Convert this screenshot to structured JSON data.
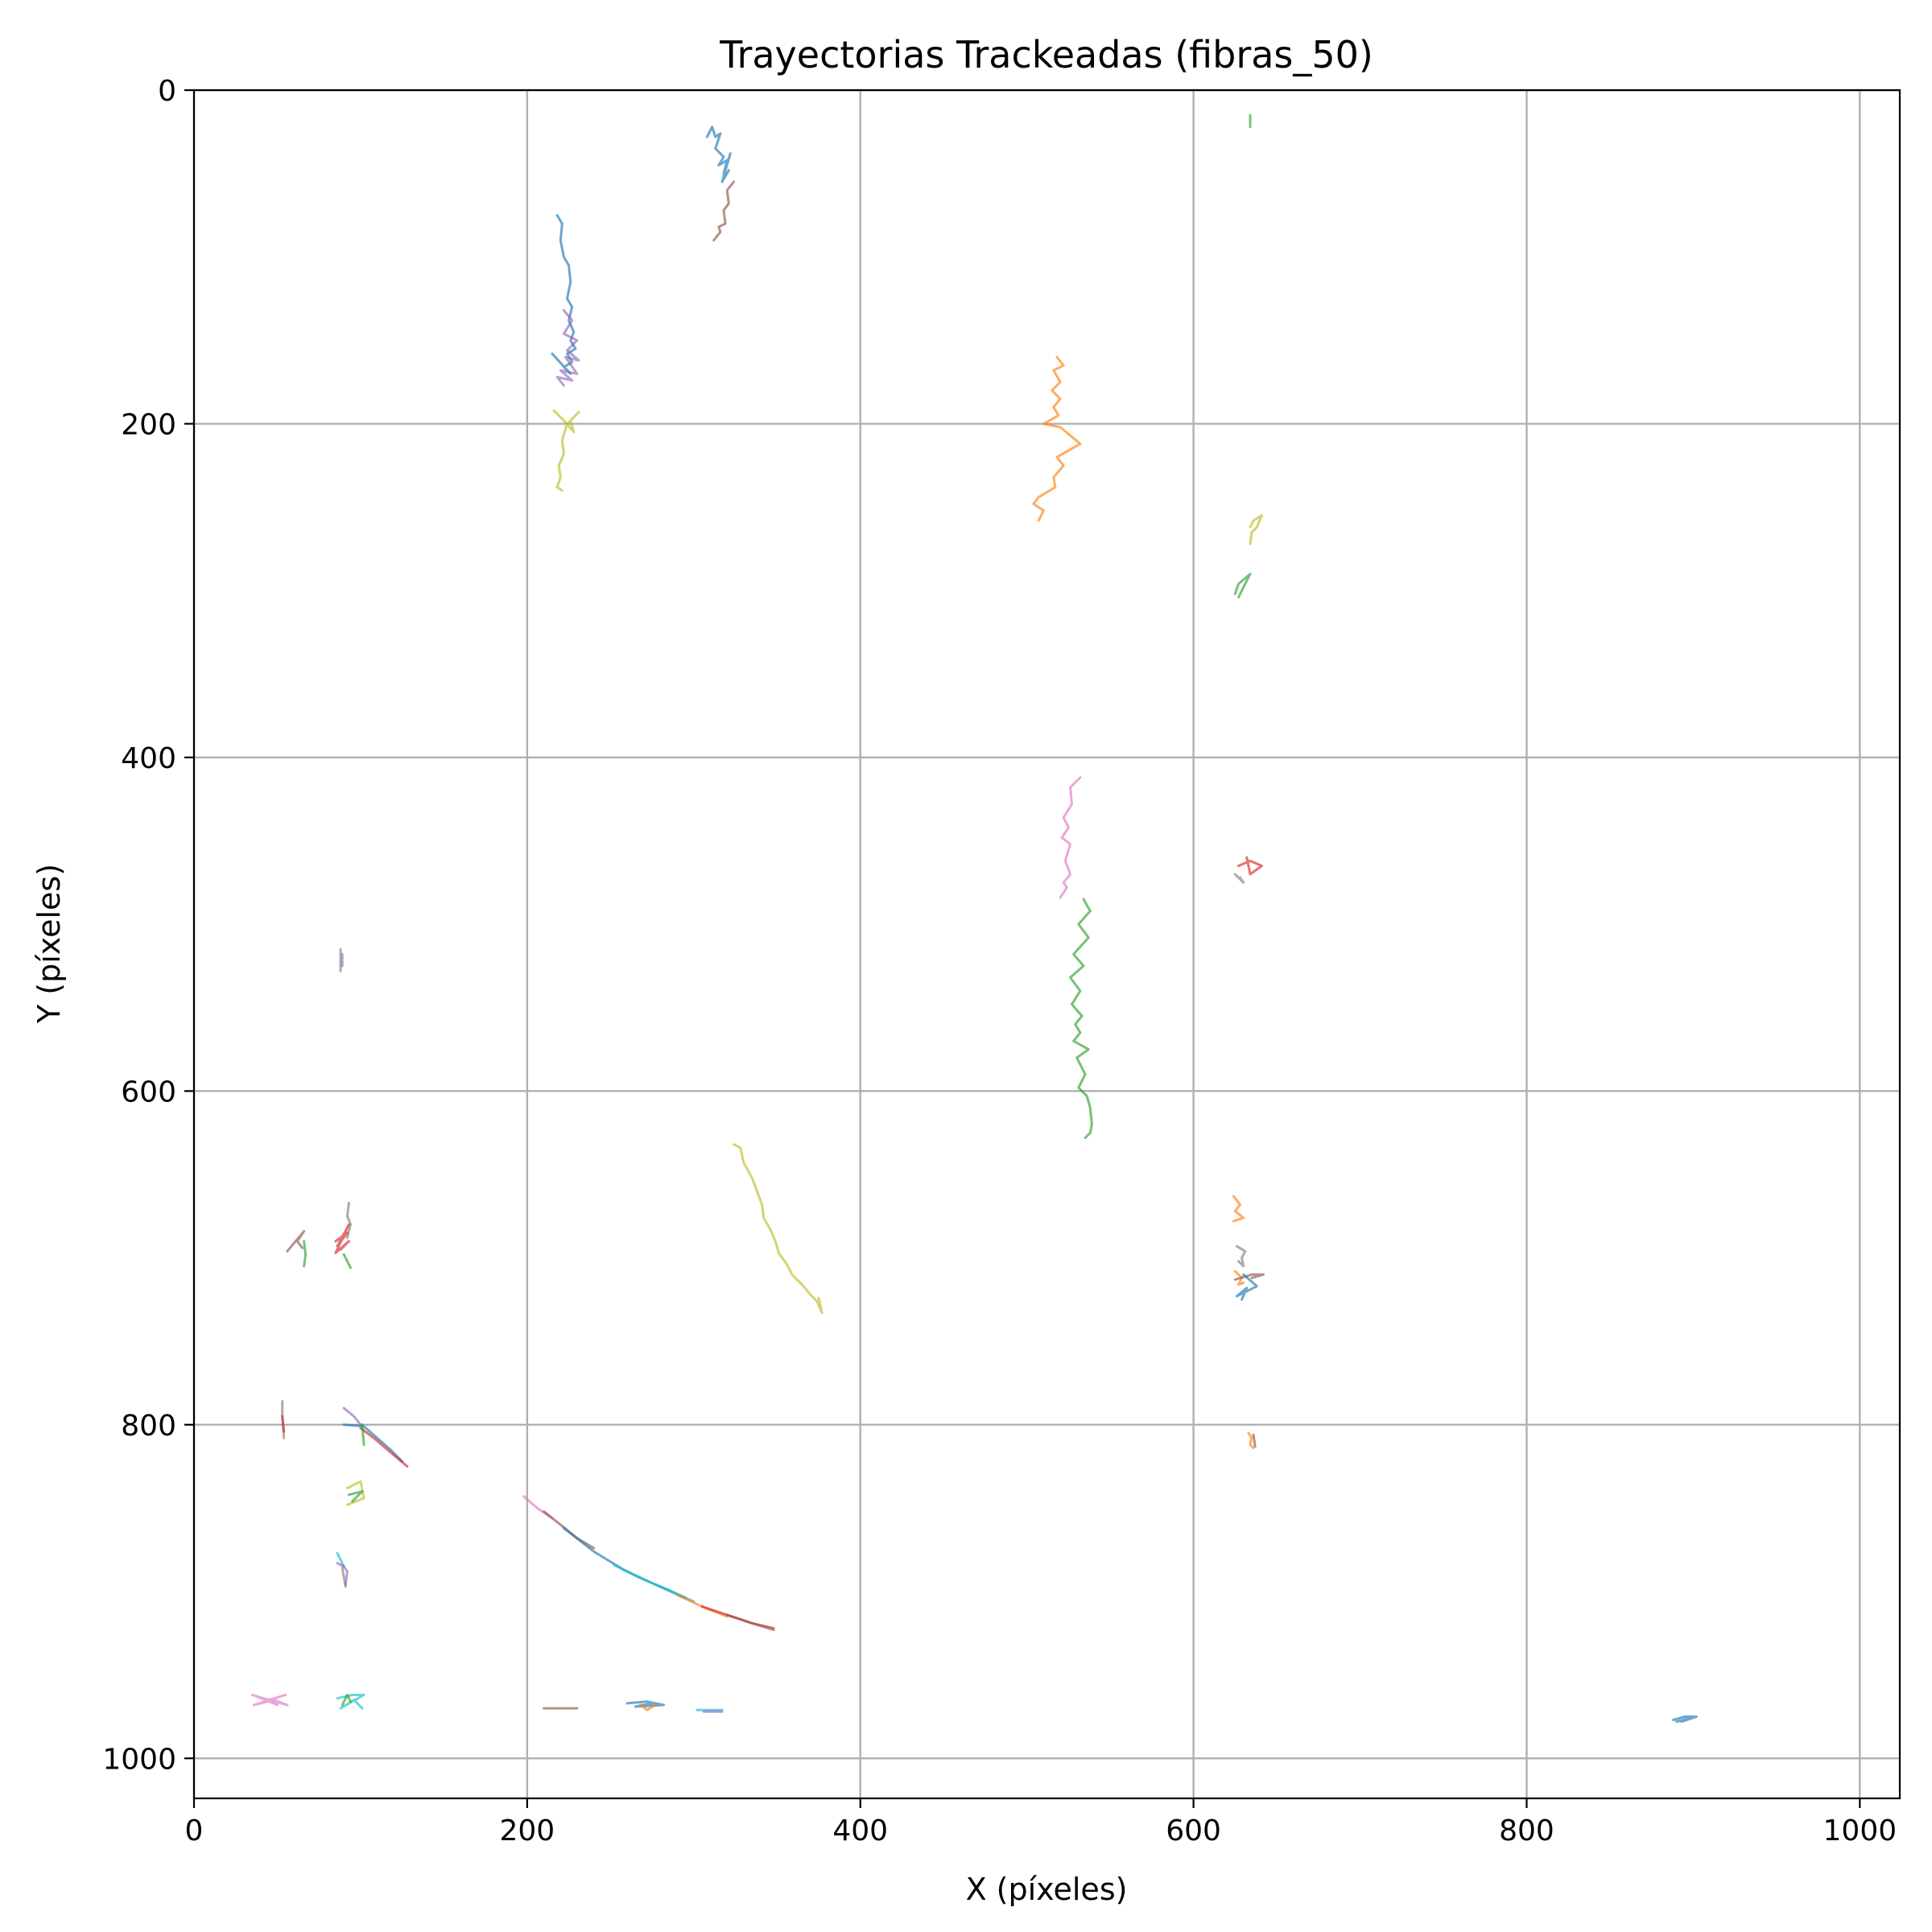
{
  "chart_data": {
    "type": "line",
    "title": "Trayectorias Trackeadas (fibras_50)",
    "xlabel": "X (píxeles)",
    "ylabel": "Y (píxeles)",
    "xlim": [
      0,
      1024
    ],
    "ylim": [
      1024,
      0
    ],
    "y_inverted": true,
    "grid": true,
    "legend": "none",
    "x_ticks": [
      0,
      200,
      400,
      600,
      800,
      1000
    ],
    "y_ticks": [
      0,
      200,
      400,
      600,
      800,
      1000
    ],
    "series": [
      {
        "color": "#1f77b4",
        "x": [
          218,
          221,
          220,
          222,
          225,
          226,
          224,
          227,
          225,
          228,
          226,
          229,
          224,
          227,
          222,
          226,
          215
        ],
        "y": [
          75,
          80,
          90,
          100,
          105,
          115,
          125,
          130,
          138,
          145,
          150,
          155,
          158,
          163,
          166,
          170,
          158
        ]
      },
      {
        "color": "#9467bd",
        "x": [
          222,
          227,
          222,
          230,
          224,
          231,
          223,
          230,
          220,
          227,
          218,
          222
        ],
        "y": [
          132,
          138,
          146,
          150,
          156,
          162,
          160,
          170,
          168,
          174,
          172,
          177
        ]
      },
      {
        "color": "#bcbd22",
        "x": [
          216,
          222,
          228,
          226,
          231,
          224,
          221,
          222,
          219,
          220,
          218,
          221
        ],
        "y": [
          192,
          198,
          205,
          198,
          193,
          200,
          210,
          218,
          225,
          232,
          238,
          240
        ]
      },
      {
        "color": "#1f77b4",
        "x": [
          308,
          311,
          313,
          316,
          313,
          318,
          315,
          320,
          318,
          322,
          317,
          321
        ],
        "y": [
          28,
          22,
          28,
          26,
          35,
          40,
          45,
          42,
          50,
          38,
          55,
          48
        ]
      },
      {
        "color": "#8c564b",
        "x": [
          324,
          320,
          321,
          318,
          319,
          315,
          316,
          312
        ],
        "y": [
          55,
          60,
          68,
          72,
          80,
          82,
          85,
          90
        ]
      },
      {
        "color": "#2ca02c",
        "x": [
          634,
          634
        ],
        "y": [
          15,
          22
        ]
      },
      {
        "color": "#ff7f0e",
        "x": [
          518,
          522,
          516,
          520,
          515,
          520,
          516,
          519,
          510,
          520,
          532,
          518,
          522,
          516,
          517,
          507,
          504,
          510,
          507
        ],
        "y": [
          160,
          165,
          168,
          175,
          180,
          185,
          190,
          195,
          200,
          202,
          212,
          220,
          225,
          232,
          238,
          244,
          248,
          252,
          258
        ]
      },
      {
        "color": "#bcbd22",
        "x": [
          634,
          636,
          641,
          638,
          635,
          634
        ],
        "y": [
          262,
          258,
          255,
          262,
          265,
          272
        ]
      },
      {
        "color": "#2ca02c",
        "x": [
          627,
          631,
          629,
          634,
          627,
          625
        ],
        "y": [
          304,
          296,
          300,
          290,
          296,
          302
        ]
      },
      {
        "color": "#e377c2",
        "x": [
          532,
          526,
          527,
          522,
          525,
          521,
          526,
          523,
          526,
          522,
          524,
          520
        ],
        "y": [
          412,
          418,
          428,
          436,
          442,
          448,
          452,
          462,
          470,
          475,
          478,
          484
        ]
      },
      {
        "color": "#d62728",
        "x": [
          627,
          634,
          641,
          634,
          632
        ],
        "y": [
          465,
          462,
          465,
          470,
          460
        ]
      },
      {
        "color": "#7f7f7f",
        "x": [
          625,
          630,
          628
        ],
        "y": [
          470,
          475,
          472
        ]
      },
      {
        "color": "#2ca02c",
        "x": [
          534,
          538,
          531,
          537,
          528,
          534,
          526,
          532,
          527,
          533,
          529,
          532,
          528,
          537,
          530,
          535,
          531,
          536,
          538,
          539,
          538,
          535
        ],
        "y": [
          485,
          492,
          500,
          508,
          518,
          525,
          532,
          540,
          548,
          555,
          560,
          565,
          570,
          575,
          580,
          590,
          598,
          603,
          610,
          620,
          625,
          628
        ]
      },
      {
        "color": "#bcbd22",
        "x": [
          324,
          328,
          330,
          335,
          338,
          341,
          342,
          346,
          349,
          351,
          356,
          359,
          365,
          370,
          374,
          377,
          375
        ],
        "y": [
          632,
          634,
          643,
          652,
          660,
          668,
          676,
          683,
          690,
          697,
          704,
          710,
          716,
          722,
          726,
          733,
          724
        ]
      },
      {
        "color": "#ff7f0e",
        "x": [
          624,
          628,
          625,
          630,
          624
        ],
        "y": [
          663,
          668,
          672,
          676,
          678
        ]
      },
      {
        "color": "#7f7f7f",
        "x": [
          626,
          631,
          629,
          630,
          627
        ],
        "y": [
          693,
          696,
          700,
          705,
          702
        ]
      },
      {
        "color": "#ff7f0e",
        "x": [
          625,
          629,
          627,
          630
        ],
        "y": [
          708,
          712,
          716,
          715
        ]
      },
      {
        "color": "#8c564b",
        "x": [
          625,
          635,
          642,
          635
        ],
        "y": [
          713,
          710,
          710,
          712
        ]
      },
      {
        "color": "#1f77b4",
        "x": [
          630,
          638,
          626,
          632,
          629
        ],
        "y": [
          710,
          717,
          723,
          718,
          725
        ]
      },
      {
        "color": "#7f7f7f",
        "x": [
          93,
          92,
          94,
          92
        ],
        "y": [
          667,
          675,
          680,
          688
        ]
      },
      {
        "color": "#d62728",
        "x": [
          85,
          92,
          86,
          93,
          85,
          93,
          88
        ],
        "y": [
          690,
          685,
          693,
          680,
          697,
          690,
          695
        ]
      },
      {
        "color": "#2ca02c",
        "x": [
          90,
          94
        ],
        "y": [
          698,
          706
        ]
      },
      {
        "color": "#8c564b",
        "x": [
          56,
          66,
          62,
          65
        ],
        "y": [
          696,
          684,
          690,
          694
        ]
      },
      {
        "color": "#2ca02c",
        "x": [
          66,
          67,
          66
        ],
        "y": [
          690,
          698,
          705
        ]
      },
      {
        "color": "#7f7f7f",
        "x": [
          88,
          88
        ],
        "y": [
          515,
          528
        ]
      },
      {
        "color": "#9467bd",
        "x": [
          89,
          89
        ],
        "y": [
          518,
          525
        ]
      },
      {
        "color": "#7f7f7f",
        "x": [
          53,
          53,
          54
        ],
        "y": [
          786,
          795,
          808
        ]
      },
      {
        "color": "#d62728",
        "x": [
          53,
          54
        ],
        "y": [
          795,
          804
        ]
      },
      {
        "color": "#9467bd",
        "x": [
          90,
          96,
          100
        ],
        "y": [
          790,
          795,
          800
        ]
      },
      {
        "color": "#1f77b4",
        "x": [
          90,
          102,
          110,
          118,
          125
        ],
        "y": [
          800,
          801,
          808,
          815,
          822
        ]
      },
      {
        "color": "#d62728",
        "x": [
          100,
          108,
          115,
          122,
          128
        ],
        "y": [
          802,
          808,
          814,
          820,
          825
        ]
      },
      {
        "color": "#2ca02c",
        "x": [
          101,
          102
        ],
        "y": [
          800,
          812
        ]
      },
      {
        "color": "#bcbd22",
        "x": [
          92,
          100,
          102,
          92
        ],
        "y": [
          838,
          834,
          844,
          848
        ]
      },
      {
        "color": "#2ca02c",
        "x": [
          93,
          101,
          95
        ],
        "y": [
          842,
          840,
          846
        ]
      },
      {
        "color": "#17becf",
        "x": [
          86,
          90
        ],
        "y": [
          877,
          885
        ]
      },
      {
        "color": "#9467bd",
        "x": [
          86,
          90,
          92,
          91
        ],
        "y": [
          883,
          885,
          888,
          896
        ]
      },
      {
        "color": "#7f7f7f",
        "x": [
          89,
          91
        ],
        "y": [
          886,
          897
        ]
      },
      {
        "color": "#e377c2",
        "x": [
          198,
          206,
          215
        ],
        "y": [
          843,
          850,
          856
        ]
      },
      {
        "color": "#8c564b",
        "x": [
          210,
          220,
          230,
          240
        ],
        "y": [
          852,
          860,
          868,
          874
        ]
      },
      {
        "color": "#1f77b4",
        "x": [
          222,
          240,
          258,
          275,
          295
        ],
        "y": [
          862,
          876,
          887,
          895,
          904
        ]
      },
      {
        "color": "#17becf",
        "x": [
          252,
          268,
          285,
          300
        ],
        "y": [
          884,
          892,
          899,
          906
        ]
      },
      {
        "color": "#ff7f0e",
        "x": [
          290,
          305,
          320
        ],
        "y": [
          902,
          909,
          915
        ]
      },
      {
        "color": "#d62728",
        "x": [
          305,
          320,
          335,
          348
        ],
        "y": [
          909,
          914,
          919,
          922
        ]
      },
      {
        "color": "#8c564b",
        "x": [
          320,
          335,
          348
        ],
        "y": [
          914,
          919,
          923
        ]
      },
      {
        "color": "#e377c2",
        "x": [
          35,
          45,
          55,
          36,
          48,
          56,
          38,
          50
        ],
        "y": [
          962,
          965,
          962,
          968,
          965,
          968,
          963,
          968
        ]
      },
      {
        "color": "#17becf",
        "x": [
          86,
          95,
          102,
          88,
          96,
          101
        ],
        "y": [
          964,
          962,
          962,
          970,
          965,
          970
        ]
      },
      {
        "color": "#2ca02c",
        "x": [
          89,
          92,
          94
        ],
        "y": [
          968,
          962,
          966
        ]
      },
      {
        "color": "#8c564b",
        "x": [
          210,
          230
        ],
        "y": [
          970,
          970
        ]
      },
      {
        "color": "#1f77b4",
        "x": [
          260,
          272,
          282,
          265,
          275
        ],
        "y": [
          967,
          966,
          968,
          969,
          967
        ]
      },
      {
        "color": "#ff7f0e",
        "x": [
          268,
          272,
          277
        ],
        "y": [
          968,
          971,
          968
        ]
      },
      {
        "color": "#17becf",
        "x": [
          302,
          317
        ],
        "y": [
          971,
          971
        ]
      },
      {
        "color": "#9467bd",
        "x": [
          306,
          317
        ],
        "y": [
          972,
          972
        ]
      },
      {
        "color": "#1f77b4",
        "x": [
          888,
          895,
          902,
          893,
          898,
          890
        ],
        "y": [
          977,
          975,
          975,
          978,
          976,
          978
        ]
      },
      {
        "color": "#ff7f0e",
        "x": [
          633,
          635,
          634,
          636
        ],
        "y": [
          805,
          808,
          812,
          814
        ]
      },
      {
        "color": "#8c564b",
        "x": [
          636,
          637
        ],
        "y": [
          806,
          813
        ]
      }
    ]
  }
}
